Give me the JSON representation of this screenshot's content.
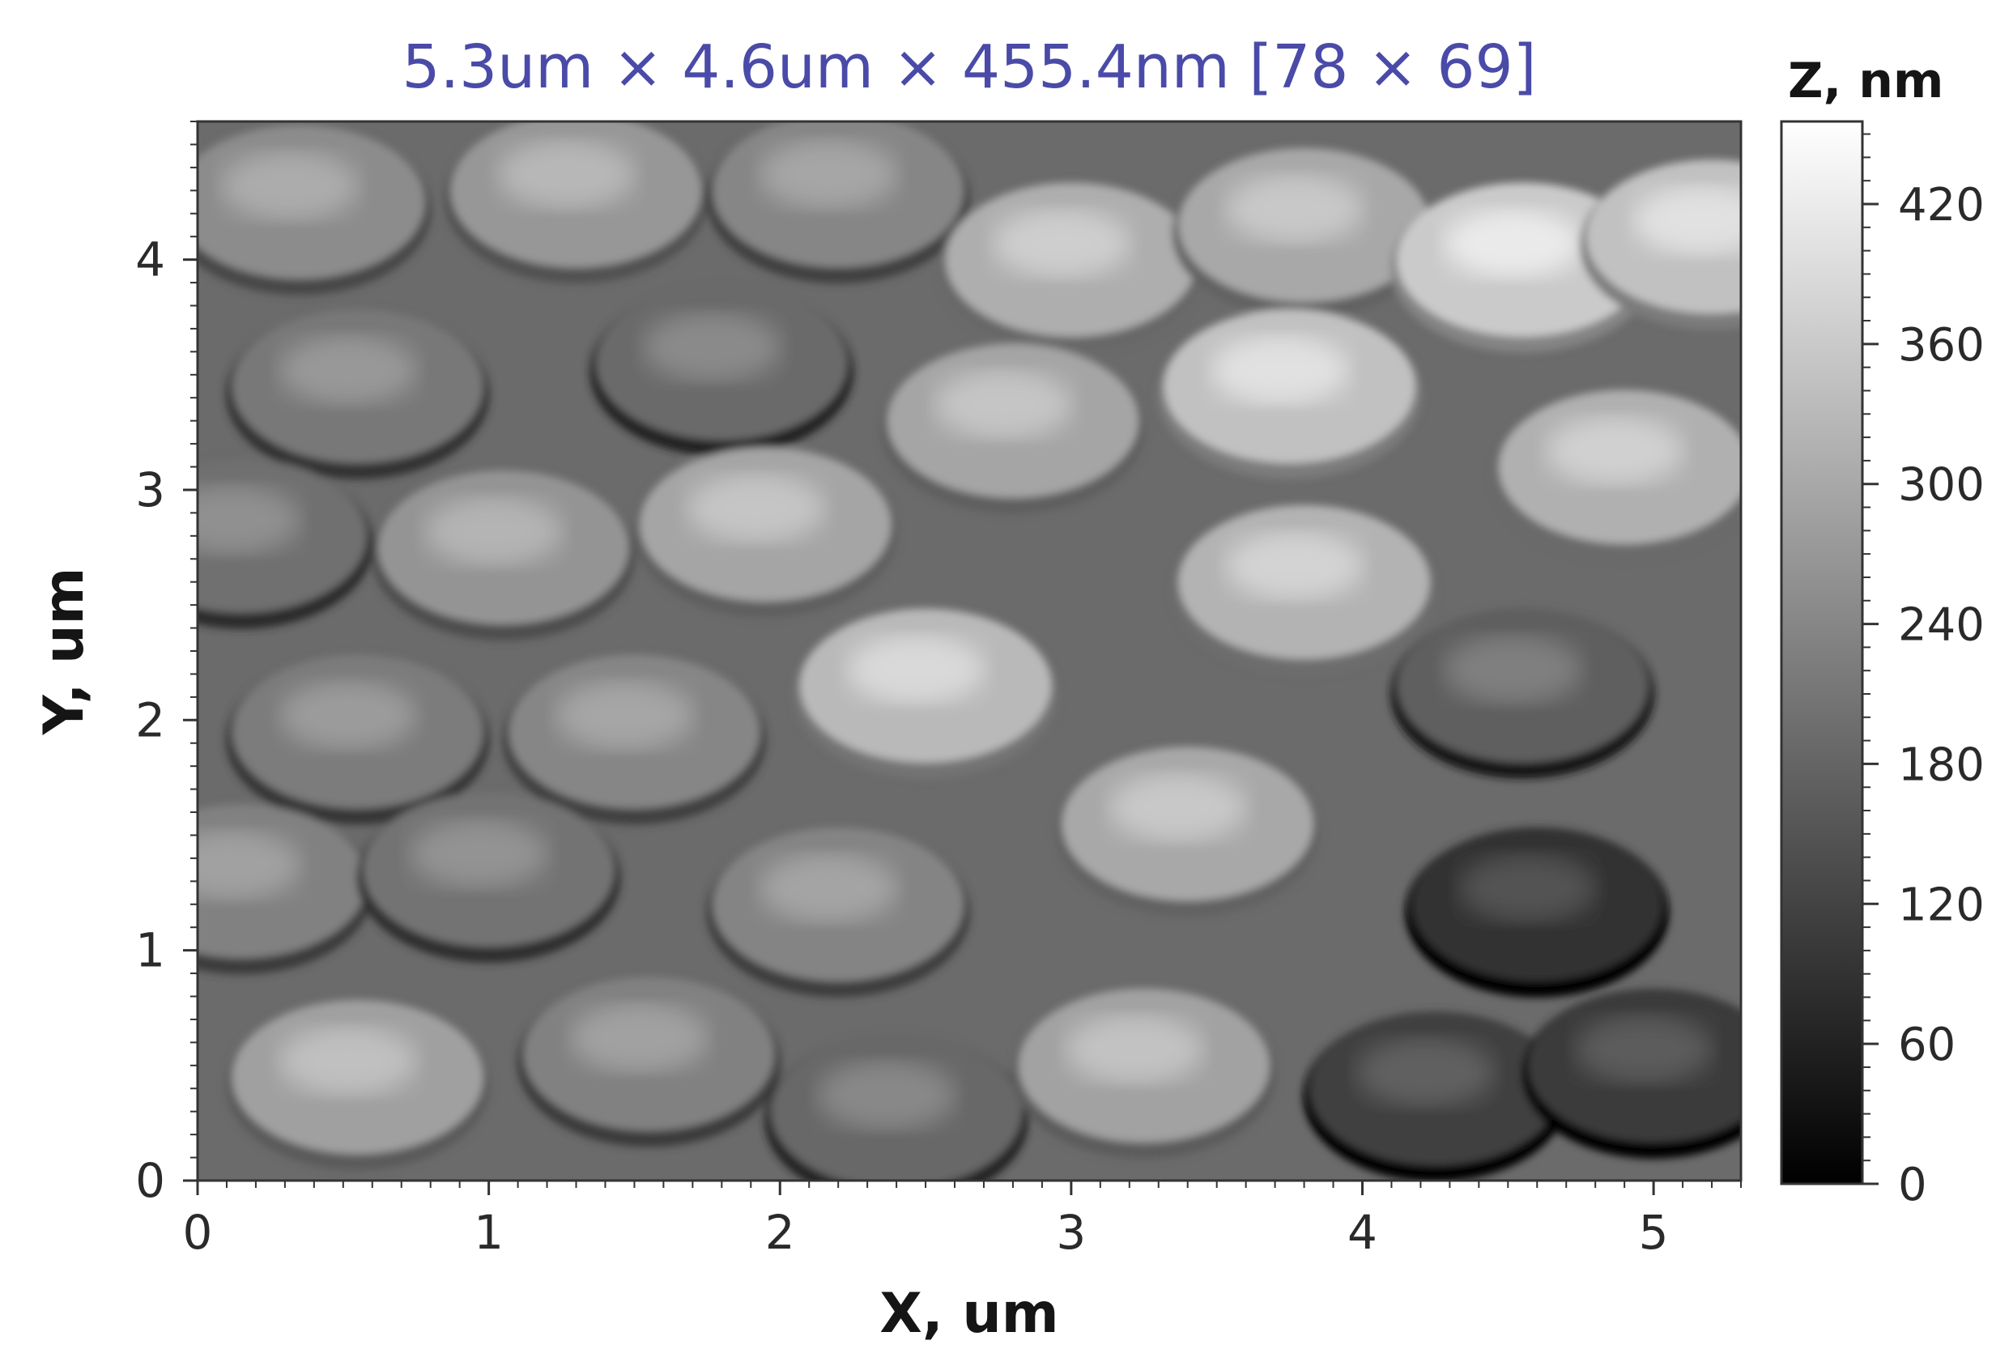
{
  "chart_data": {
    "type": "heatmap",
    "title": "5.3um × 4.6um × 455.4nm [78 × 69]",
    "xlabel": "X, um",
    "ylabel": "Y, um",
    "xlim": [
      0,
      5.3
    ],
    "ylim": [
      0,
      4.6
    ],
    "x_ticks": [
      {
        "value": 0,
        "label": "0"
      },
      {
        "value": 1,
        "label": "1"
      },
      {
        "value": 2,
        "label": "2"
      },
      {
        "value": 3,
        "label": "3"
      },
      {
        "value": 4,
        "label": "4"
      },
      {
        "value": 5,
        "label": "5"
      }
    ],
    "y_ticks": [
      {
        "value": 0,
        "label": "0"
      },
      {
        "value": 1,
        "label": "1"
      },
      {
        "value": 2,
        "label": "2"
      },
      {
        "value": 3,
        "label": "3"
      },
      {
        "value": 4,
        "label": "4"
      }
    ],
    "colorbar": {
      "label": "Z, nm",
      "range": [
        0,
        455.4
      ],
      "colormap": "grayscale",
      "ticks": [
        {
          "value": 0,
          "label": "0"
        },
        {
          "value": 60,
          "label": "60"
        },
        {
          "value": 120,
          "label": "120"
        },
        {
          "value": 180,
          "label": "180"
        },
        {
          "value": 240,
          "label": "240"
        },
        {
          "value": 300,
          "label": "300"
        },
        {
          "value": 360,
          "label": "360"
        },
        {
          "value": 420,
          "label": "420"
        }
      ]
    },
    "features": [
      {
        "x": 0.35,
        "y": 4.25,
        "z": 250
      },
      {
        "x": 1.3,
        "y": 4.3,
        "z": 270
      },
      {
        "x": 2.2,
        "y": 4.3,
        "z": 240
      },
      {
        "x": 3.0,
        "y": 4.0,
        "z": 310
      },
      {
        "x": 3.8,
        "y": 4.15,
        "z": 300
      },
      {
        "x": 4.55,
        "y": 4.0,
        "z": 360
      },
      {
        "x": 5.2,
        "y": 4.1,
        "z": 345
      },
      {
        "x": 0.55,
        "y": 3.45,
        "z": 215
      },
      {
        "x": 1.8,
        "y": 3.55,
        "z": 190
      },
      {
        "x": 2.8,
        "y": 3.3,
        "z": 295
      },
      {
        "x": 3.75,
        "y": 3.45,
        "z": 345
      },
      {
        "x": 4.9,
        "y": 3.1,
        "z": 315
      },
      {
        "x": 0.15,
        "y": 2.8,
        "z": 200
      },
      {
        "x": 1.05,
        "y": 2.75,
        "z": 265
      },
      {
        "x": 1.95,
        "y": 2.85,
        "z": 295
      },
      {
        "x": 3.8,
        "y": 2.6,
        "z": 320
      },
      {
        "x": 0.55,
        "y": 1.95,
        "z": 220
      },
      {
        "x": 1.5,
        "y": 1.95,
        "z": 240
      },
      {
        "x": 2.5,
        "y": 2.15,
        "z": 330
      },
      {
        "x": 4.55,
        "y": 2.15,
        "z": 170
      },
      {
        "x": 0.15,
        "y": 1.3,
        "z": 230
      },
      {
        "x": 1.0,
        "y": 1.35,
        "z": 205
      },
      {
        "x": 2.2,
        "y": 1.2,
        "z": 235
      },
      {
        "x": 3.4,
        "y": 1.55,
        "z": 300
      },
      {
        "x": 0.55,
        "y": 0.45,
        "z": 285
      },
      {
        "x": 1.55,
        "y": 0.55,
        "z": 230
      },
      {
        "x": 2.4,
        "y": 0.3,
        "z": 185
      },
      {
        "x": 3.25,
        "y": 0.5,
        "z": 290
      },
      {
        "x": 4.25,
        "y": 0.4,
        "z": 115
      },
      {
        "x": 5.0,
        "y": 0.5,
        "z": 105
      },
      {
        "x": 4.6,
        "y": 1.2,
        "z": 90
      }
    ]
  }
}
